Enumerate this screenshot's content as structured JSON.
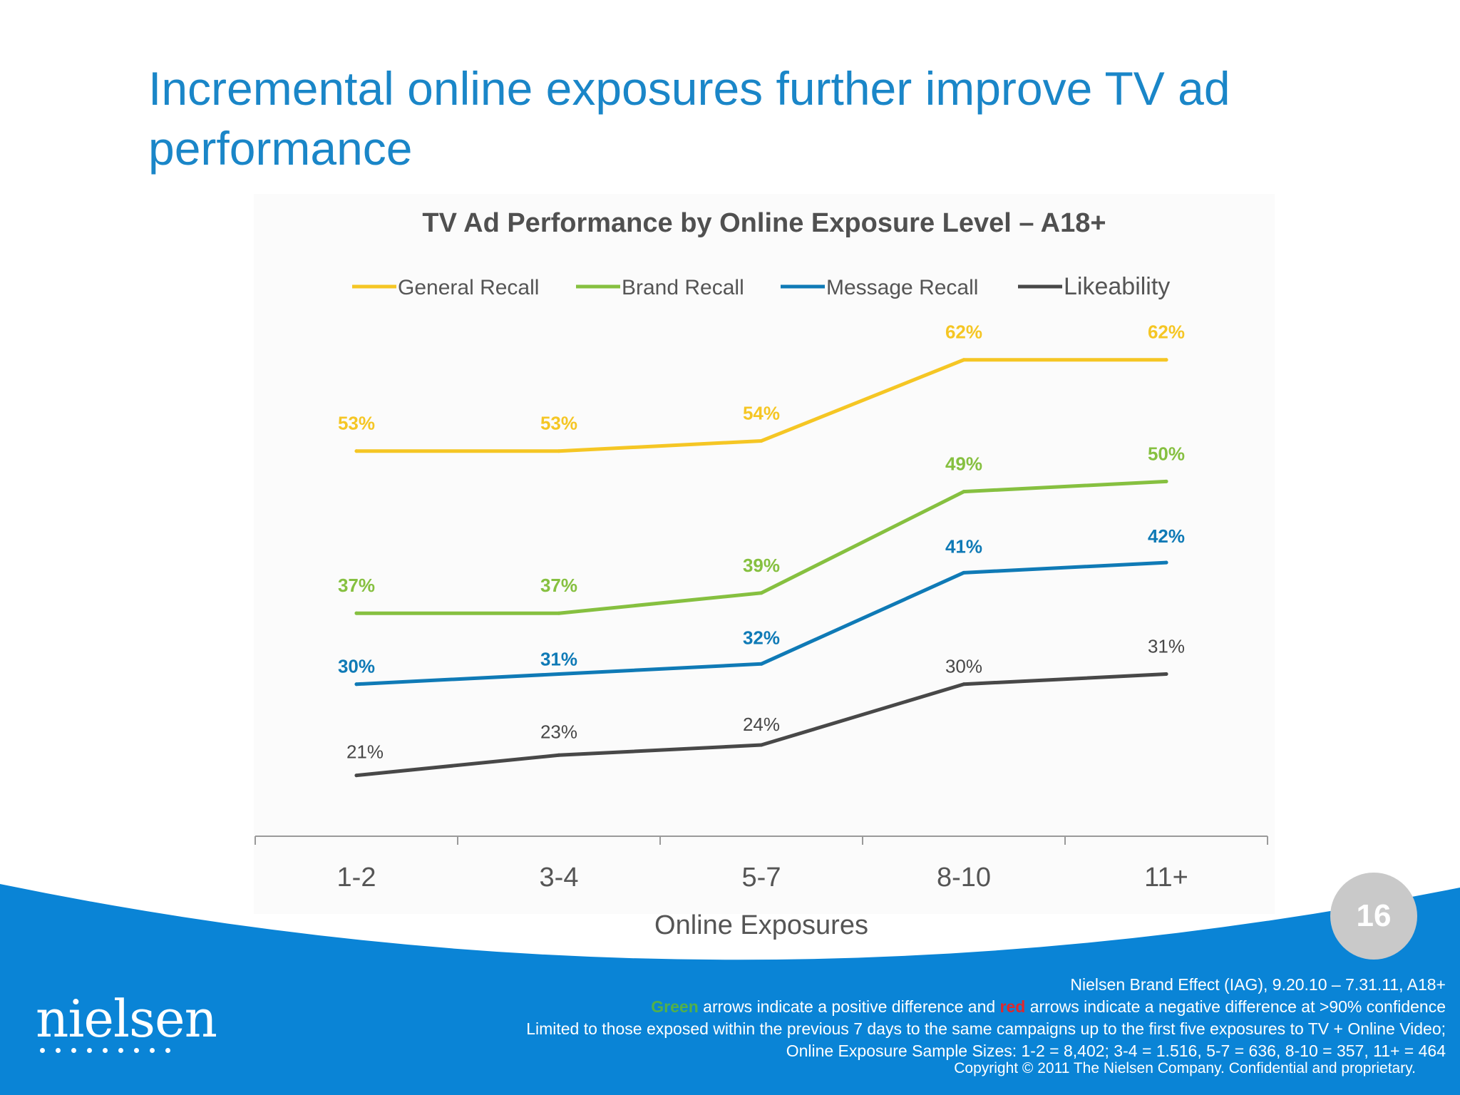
{
  "slide": {
    "title": "Incremental online exposures further improve TV ad performance",
    "page_number": "16"
  },
  "colors": {
    "title_blue": "#1a86c8",
    "footer_blue": "#0a84d6",
    "general_recall": "#f5c624",
    "brand_recall": "#86c040",
    "message_recall": "#0f7ab6",
    "likeability": "#484848"
  },
  "chart_data": {
    "type": "line",
    "title": "TV Ad Performance by Online Exposure Level – A18+",
    "xlabel": "Online Exposures",
    "ylabel": "",
    "categories": [
      "1-2",
      "3-4",
      "5-7",
      "8-10",
      "11+"
    ],
    "ylim": [
      15,
      70
    ],
    "grid": false,
    "legend_position": "top",
    "series": [
      {
        "name": "General Recall",
        "color": "#f5c624",
        "values": [
          53,
          53,
          54,
          62,
          62
        ],
        "labels": [
          "53%",
          "53%",
          "54%",
          "62%",
          "62%"
        ],
        "label_bold": true
      },
      {
        "name": "Brand Recall",
        "color": "#86c040",
        "values": [
          37,
          37,
          39,
          49,
          50
        ],
        "labels": [
          "37%",
          "37%",
          "39%",
          "49%",
          "50%"
        ],
        "label_bold": true
      },
      {
        "name": "Message Recall",
        "color": "#0f7ab6",
        "values": [
          30,
          31,
          32,
          41,
          42
        ],
        "labels": [
          "30%",
          "31%",
          "32%",
          "41%",
          "42%"
        ],
        "label_bold": true
      },
      {
        "name": "Likeability",
        "color": "#484848",
        "values": [
          21,
          23,
          24,
          30,
          31
        ],
        "labels": [
          "21%",
          "23%",
          "24%",
          "30%",
          "31%"
        ],
        "label_bold": false
      }
    ]
  },
  "footer": {
    "logo_text": "nielsen",
    "source": "Nielsen Brand Effect (IAG), 9.20.10 – 7.31.11, A18+",
    "arrows_green_word": "Green",
    "arrows_middle": " arrows indicate a positive difference and ",
    "arrows_red_word": "red",
    "arrows_end": " arrows indicate a negative difference at >90% confidence",
    "limited_note": "Limited to those exposed within the previous 7 days to the same campaigns up to the first five exposures to TV + Online Video;",
    "sample_sizes": "Online Exposure Sample Sizes: 1-2 =  8,402; 3-4 = 1.516, 5-7 =  636, 8-10 =  357, 11+ = 464",
    "copyright": "Copyright © 2011 The Nielsen Company. Confidential and proprietary."
  }
}
